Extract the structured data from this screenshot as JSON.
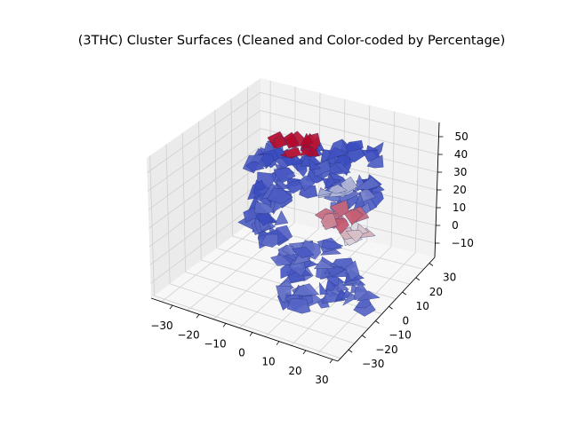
{
  "chart_data": {
    "type": "3d-surface",
    "title": "(3THC) Cluster Surfaces (Cleaned and Color-coded by Percentage)",
    "xlabel": "",
    "ylabel": "",
    "zlabel": "",
    "xlim": [
      -38,
      32
    ],
    "ylim": [
      -38,
      34
    ],
    "zlim": [
      -18,
      58
    ],
    "x_ticks": [
      -30,
      -20,
      -10,
      0,
      10,
      20,
      30
    ],
    "y_ticks": [
      -30,
      -20,
      -10,
      0,
      10,
      20,
      30
    ],
    "z_ticks": [
      -10,
      0,
      10,
      20,
      30,
      40,
      50
    ],
    "x_tick_labels": [
      "−30",
      "−20",
      "−10",
      "0",
      "10",
      "20",
      "30"
    ],
    "y_tick_labels": [
      "−30",
      "−20",
      "−10",
      "0",
      "10",
      "20",
      "30"
    ],
    "z_tick_labels": [
      "−10",
      "0",
      "10",
      "20",
      "30",
      "40",
      "50"
    ],
    "grid": true,
    "legend": "none",
    "colormap": "coolwarm",
    "colors": {
      "low": "#3b4cc0",
      "mid": "#dcdddd",
      "high": "#b40426",
      "pane_left": "#ebebeb",
      "pane_right": "#f2f2f2",
      "pane_floor": "#f7f7f7",
      "grid": "#d0d0d0"
    },
    "clusters": [
      {
        "id": 1,
        "level": 0.02
      },
      {
        "id": 2,
        "level": 0.05
      },
      {
        "id": 3,
        "level": 0.08
      },
      {
        "id": 4,
        "level": 0.1
      },
      {
        "id": 5,
        "level": 0.12
      },
      {
        "id": 6,
        "level": 0.35
      },
      {
        "id": 7,
        "level": 0.55
      },
      {
        "id": 8,
        "level": 0.75
      },
      {
        "id": 9,
        "level": 1.0
      }
    ]
  }
}
